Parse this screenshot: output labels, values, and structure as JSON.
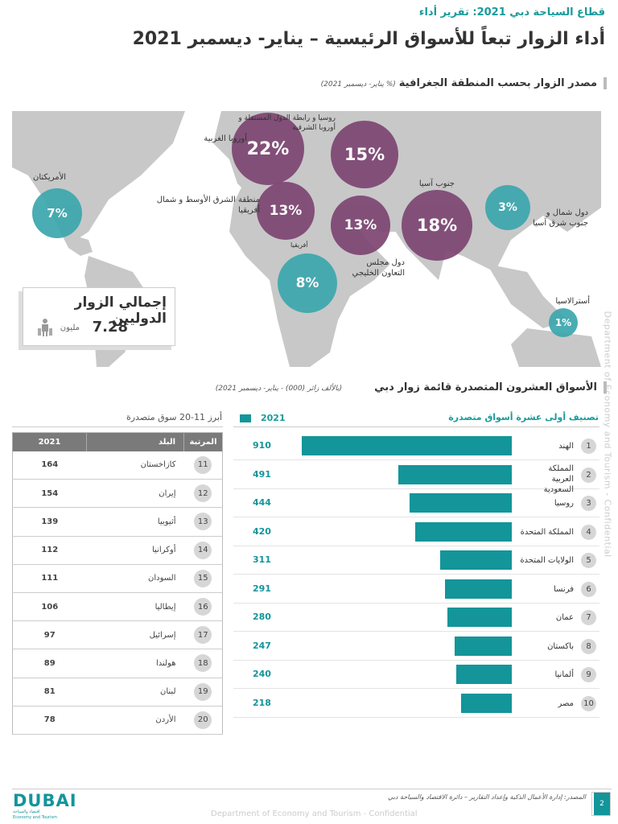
{
  "header": {
    "kicker": "قطاع السياحة  دبي 2021: تقرير أداء",
    "title": "أداء الزوار تبعاً للأسواق الرئيسية – يناير- ديسمبر 2021"
  },
  "map_section": {
    "title": "مصدر الزوار بحسب المنطقة الجغرافية",
    "subtitle": "(% يناير- ديسمبر 2021)",
    "regions": [
      {
        "name": "أوروبا الغربية",
        "pct": "22%",
        "color": "#7d4572"
      },
      {
        "name": "روسيا و رابطة الدول المستقلة و أوروبا الشرقية",
        "pct": "15%",
        "color": "#7d4572"
      },
      {
        "name": "منطقة الشرق الأوسط و شمال أفريقيا",
        "pct": "13%",
        "color": "#7d4572"
      },
      {
        "name": "دول مجلس التعاون الخليجي",
        "pct": "13%",
        "color": "#7d4572"
      },
      {
        "name": "جنوب آسيا",
        "pct": "18%",
        "color": "#7d4572"
      },
      {
        "name": "دول شمال و جنوب شرق آسيا",
        "pct": "3%",
        "color": "#3ba7ad"
      },
      {
        "name": "الأمريكتان",
        "pct": "7%",
        "color": "#3ba7ad"
      },
      {
        "name": "أفريقيا",
        "pct": "8%",
        "color": "#3ba7ad"
      },
      {
        "name": "أسترالاسيا",
        "pct": "1%",
        "color": "#3ba7ad"
      }
    ],
    "total": {
      "label": "إجمالي الزوار الدوليين",
      "value": "7.28",
      "unit": "مليون"
    }
  },
  "markets_section": {
    "title": "الأسواق العشرون المتصدرة قائمة زوار دبي",
    "subtitle": "(بالألف زائر (000) - يناير- ديسمبر 2021)"
  },
  "chart_data": {
    "type": "bar",
    "title": "تصنيف أولى عشرة أسواق متصدرة",
    "legend": "2021",
    "series": [
      {
        "name": "2021"
      }
    ],
    "ranks": [
      "1",
      "2",
      "3",
      "4",
      "5",
      "6",
      "7",
      "8",
      "9",
      "10"
    ],
    "categories": [
      "الهند",
      "المملكة العربية السعودية",
      "روسيا",
      "المملكة المتحدة",
      "الولايات المتحدة",
      "فرنسا",
      "عمان",
      "باكستان",
      "ألمانيا",
      "مصر"
    ],
    "values": [
      910,
      491,
      444,
      420,
      311,
      291,
      280,
      247,
      240,
      218
    ],
    "labels": [
      "910",
      "491",
      "444",
      "420",
      "311",
      "291",
      "280",
      "247",
      "240",
      "218"
    ],
    "color": "#13959a",
    "xlim": [
      0,
      910
    ]
  },
  "table": {
    "title": "أبرز 11-20  سوق متصدرة",
    "headers": [
      "المرتبة",
      "البلد",
      "2021"
    ],
    "rows": [
      [
        "11",
        "كازاخستان",
        "164"
      ],
      [
        "12",
        "إيران",
        "154"
      ],
      [
        "13",
        "أثيوبيا",
        "139"
      ],
      [
        "14",
        "أوكرانيا",
        "112"
      ],
      [
        "15",
        "السودان",
        "111"
      ],
      [
        "16",
        "إيطاليا",
        "106"
      ],
      [
        "17",
        "إسرائيل",
        "97"
      ],
      [
        "18",
        "هولندا",
        "89"
      ],
      [
        "19",
        "لبنان",
        "81"
      ],
      [
        "20",
        "الأردن",
        "78"
      ]
    ]
  },
  "footer": {
    "source": "المصدر: إدارة الأعمال الذكية وإعداد التقارير – دائرة الاقتصاد والسياحة دبي",
    "page": "2",
    "confidential": "Department of Economy and Tourism - Confidential",
    "logo": "DUBAI اقتصاد والسياحة Economy and Tourism"
  },
  "watermark": "Department of Economy and Tourism - Confidential"
}
